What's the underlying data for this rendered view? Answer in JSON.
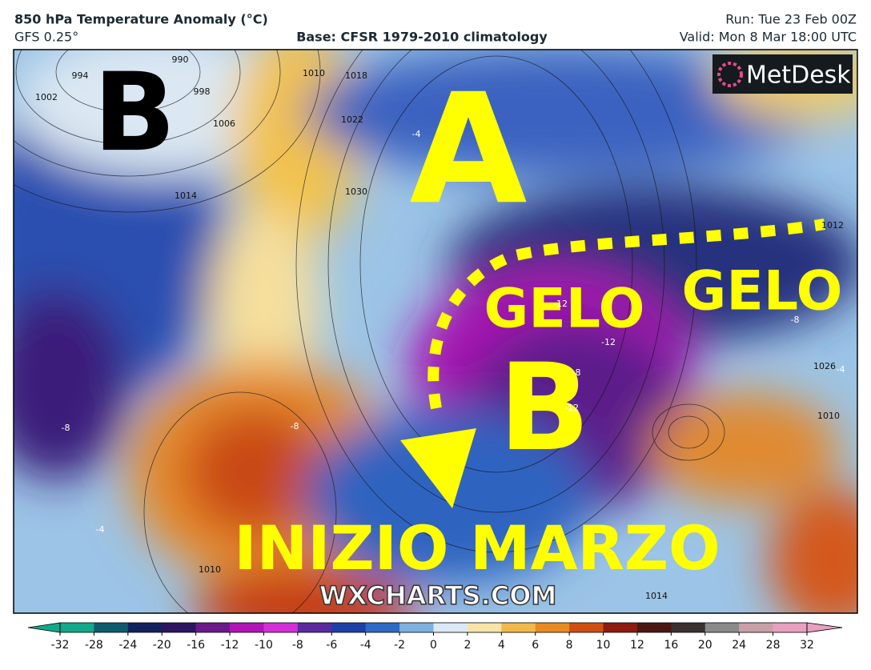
{
  "header": {
    "title": "850 hPa Temperature Anomaly (°C)",
    "model": "GFS 0.25°",
    "base": "Base: CFSR 1979-2010 climatology",
    "run": "Run: Tue 23 Feb 00Z",
    "valid": "Valid: Mon 8 Mar 18:00 UTC"
  },
  "logo": "MetDesk",
  "overlay": {
    "low_west": "B",
    "high": "A",
    "gelo_center": "GELO",
    "gelo_east": "GELO",
    "low_center": "B",
    "caption": "INIZIO MARZO",
    "watermark": "WXCHARTS.COM"
  },
  "isobar_labels": [
    "1002",
    "994",
    "990",
    "998",
    "1006",
    "1010",
    "1018",
    "1022",
    "1014",
    "1030",
    "1026",
    "1010",
    "1014",
    "1010",
    "1012"
  ],
  "anomaly_labels": [
    "-4",
    "-8",
    "-12",
    "-12",
    "-4",
    "-8",
    "-8",
    "-12",
    "-8",
    "-4"
  ],
  "colorbar": {
    "ticks": [
      -32,
      -28,
      -24,
      -20,
      -16,
      -12,
      -10,
      -8,
      -6,
      -4,
      -2,
      0,
      2,
      4,
      6,
      8,
      10,
      12,
      16,
      20,
      24,
      28,
      32
    ],
    "colors": [
      "#12a88a",
      "#0f5b6e",
      "#13225e",
      "#2e1560",
      "#6a1a8a",
      "#b015b8",
      "#d52ed8",
      "#5a2a9e",
      "#1f3fa8",
      "#2f6ac6",
      "#7fb0df",
      "#dce9f4",
      "#f7e4a8",
      "#f0b94a",
      "#e98a22",
      "#cf4f12",
      "#8f1a10",
      "#4a1812",
      "#3a3232",
      "#8a8a8a",
      "#c9a0a8",
      "#e8a0c0"
    ]
  }
}
